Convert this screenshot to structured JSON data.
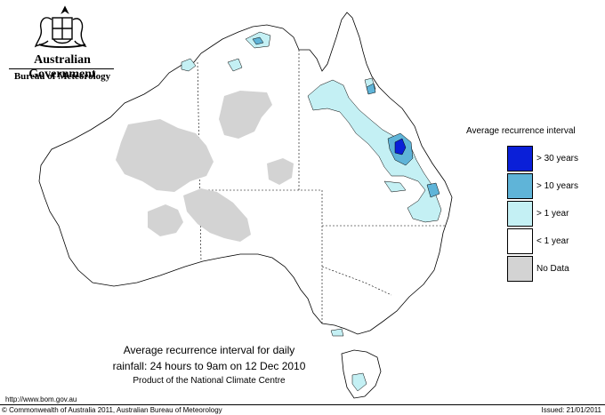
{
  "header": {
    "org_name": "Australian Government",
    "org_subname": "Bureau of Meteorology"
  },
  "legend": {
    "title": "Average recurrence interval",
    "items": [
      {
        "label": "> 30 years",
        "color": "#0a1fd8"
      },
      {
        "label": "> 10 years",
        "color": "#5fb4d8"
      },
      {
        "label": "> 1 year",
        "color": "#c4f0f4"
      },
      {
        "label": "< 1 year",
        "color": "#ffffff"
      },
      {
        "label": "No Data",
        "color": "#d3d3d3"
      }
    ]
  },
  "caption": {
    "line1": "Average recurrence interval for daily",
    "line2": "rainfall: 24 hours to 9am on 12 Dec 2010",
    "line3": "Product of the National Climate Centre"
  },
  "footer": {
    "url": "http://www.bom.gov.au",
    "copyright": "© Commonwealth of Australia 2011, Australian Bureau of Meteorology",
    "issued": "Issued: 21/01/2011"
  },
  "icons": [
    "coat-of-arms-icon"
  ]
}
